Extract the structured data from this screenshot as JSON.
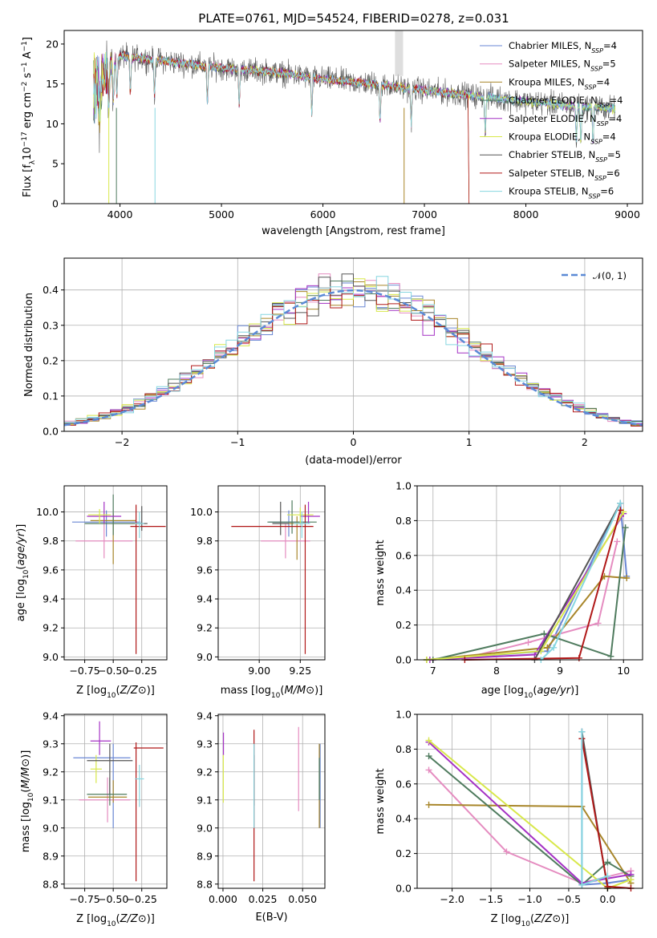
{
  "figure": {
    "title": "PLATE=0761, MJD=54524, FIBERID=0278, z=0.031"
  },
  "models": [
    {
      "name": "Chabrier MILES, N",
      "sub": "SSP",
      "tail": "=4",
      "color": "#6a87d4"
    },
    {
      "name": "Salpeter MILES, N",
      "sub": "SSP",
      "tail": "=5",
      "color": "#e58cc0"
    },
    {
      "name": "Kroupa MILES, N",
      "sub": "SSP",
      "tail": "=4",
      "color": "#a8862a"
    },
    {
      "name": "Chabrier ELODIE, N",
      "sub": "SSP",
      "tail": "=4",
      "color": "#4f7b5e"
    },
    {
      "name": "Salpeter ELODIE, N",
      "sub": "SSP",
      "tail": "=4",
      "color": "#a431c4"
    },
    {
      "name": "Kroupa ELODIE, N",
      "sub": "SSP",
      "tail": "=4",
      "color": "#d8e84a"
    },
    {
      "name": "Chabrier STELIB, N",
      "sub": "SSP",
      "tail": "=5",
      "color": "#555555"
    },
    {
      "name": "Salpeter STELIB, N",
      "sub": "SSP",
      "tail": "=6",
      "color": "#b01818"
    },
    {
      "name": "Kroupa STELIB, N",
      "sub": "SSP",
      "tail": "=6",
      "color": "#86d6e0"
    }
  ],
  "chart_data": [
    {
      "id": "spectrum",
      "type": "line",
      "xlabel": "wavelength [Angstrom, rest frame]",
      "ylabel_main": "Flux [f",
      "ylabel_sub": "λ",
      "ylabel_rest": "10",
      "ylabel_exp1": "−17",
      "ylabel_mid": " erg cm",
      "ylabel_exp2": "−2",
      "ylabel_mid2": " s",
      "ylabel_exp3": "−1",
      "ylabel_end": " A",
      "ylabel_exp4": "−1",
      "ylabel_close": "]",
      "xlim": [
        3450,
        9150
      ],
      "ylim": [
        0,
        21.7
      ],
      "xticks": [
        4000,
        5000,
        6000,
        7000,
        8000,
        9000
      ],
      "yticks": [
        0,
        5,
        10,
        15,
        20
      ],
      "data_range": [
        3740,
        8880
      ],
      "envelope": [
        [
          3740,
          14.5
        ],
        [
          4000,
          18.5
        ],
        [
          4500,
          17.8
        ],
        [
          5000,
          17.0
        ],
        [
          5500,
          16.5
        ],
        [
          6000,
          15.6
        ],
        [
          6500,
          15.0
        ],
        [
          7000,
          14.2
        ],
        [
          7500,
          13.5
        ],
        [
          8000,
          12.8
        ],
        [
          8500,
          12.2
        ],
        [
          8880,
          11.9
        ]
      ],
      "absorption_lines": [
        3800,
        3889,
        3934,
        3969,
        4102,
        4340,
        4861,
        5175,
        5890,
        6563,
        6870,
        7600,
        8498,
        8542,
        8662
      ],
      "legend_position": "upper-right"
    },
    {
      "id": "residuals",
      "type": "histogram",
      "xlabel": "(data-model)/error",
      "ylabel": "Normed distribution",
      "xlim": [
        -2.5,
        2.5
      ],
      "ylim": [
        0,
        0.49
      ],
      "xticks": [
        -2,
        -1,
        0,
        1,
        2
      ],
      "yticks": [
        0.0,
        0.1,
        0.2,
        0.3,
        0.4
      ],
      "bin_width": 0.1,
      "reference_label": "𝒩(0, 1)",
      "reference_color": "#5b8ad6",
      "grid": true,
      "legend_position": "upper-right"
    },
    {
      "id": "age_vs_Z",
      "type": "errorbar",
      "xlabel": "Z [log10(Z/Z⊙)]",
      "ylabel": "age  [log10(age/yr)]",
      "xlim": [
        -0.93,
        -0.03
      ],
      "ylim": [
        8.98,
        10.18
      ],
      "xticks": [
        -0.75,
        -0.5,
        -0.25
      ],
      "yticks": [
        9.0,
        9.2,
        9.4,
        9.6,
        9.8,
        10.0
      ],
      "points": [
        {
          "x": -0.56,
          "y": 9.93,
          "xerr": [
            0.3,
            0.3
          ],
          "yerr": [
            0.1,
            0.08
          ]
        },
        {
          "x": -0.58,
          "y": 9.8,
          "xerr": [
            0.25,
            0.25
          ],
          "yerr": [
            0.12,
            0.12
          ]
        },
        {
          "x": -0.5,
          "y": 9.94,
          "xerr": [
            0.2,
            0.2
          ],
          "yerr": [
            0.3,
            0.05
          ]
        },
        {
          "x": -0.5,
          "y": 9.92,
          "xerr": [
            0.25,
            0.25
          ],
          "yerr": [
            0.08,
            0.2
          ]
        },
        {
          "x": -0.58,
          "y": 9.97,
          "xerr": [
            0.15,
            0.15
          ],
          "yerr": [
            0.05,
            0.1
          ]
        },
        {
          "x": -0.62,
          "y": 9.98,
          "xerr": [
            0.1,
            0.1
          ],
          "yerr": [
            0.06,
            0.04
          ]
        },
        {
          "x": -0.25,
          "y": 9.92,
          "xerr": [
            0.05,
            0.05
          ],
          "yerr": [
            0.05,
            0.12
          ]
        },
        {
          "x": -0.3,
          "y": 9.9,
          "xerr": [
            0.05,
            0.26
          ],
          "yerr": [
            0.88,
            0.15
          ]
        },
        {
          "x": -0.27,
          "y": 9.92,
          "xerr": [
            0.04,
            0.04
          ],
          "yerr": [
            0.1,
            0.08
          ]
        }
      ]
    },
    {
      "id": "age_vs_mass",
      "type": "errorbar",
      "xlabel": "mass [log10(M/M⊙)]",
      "ylabel": "",
      "xlim": [
        8.75,
        9.4
      ],
      "ylim": [
        8.98,
        10.18
      ],
      "xticks": [
        9.0,
        9.25
      ],
      "yticks": [
        9.0,
        9.2,
        9.4,
        9.6,
        9.8,
        10.0
      ],
      "points": [
        {
          "x": 9.18,
          "y": 9.93,
          "xerr": [
            0.12,
            0.12
          ],
          "yerr": [
            0.1,
            0.08
          ]
        },
        {
          "x": 9.16,
          "y": 9.8,
          "xerr": [
            0.15,
            0.15
          ],
          "yerr": [
            0.12,
            0.12
          ]
        },
        {
          "x": 9.23,
          "y": 9.92,
          "xerr": [
            0.05,
            0.05
          ],
          "yerr": [
            0.25,
            0.05
          ]
        },
        {
          "x": 9.2,
          "y": 9.93,
          "xerr": [
            0.15,
            0.15
          ],
          "yerr": [
            0.08,
            0.15
          ]
        },
        {
          "x": 9.3,
          "y": 9.97,
          "xerr": [
            0.05,
            0.07
          ],
          "yerr": [
            0.05,
            0.1
          ]
        },
        {
          "x": 9.25,
          "y": 9.98,
          "xerr": [
            0.08,
            0.08
          ],
          "yerr": [
            0.06,
            0.05
          ]
        },
        {
          "x": 9.13,
          "y": 9.92,
          "xerr": [
            0.05,
            0.05
          ],
          "yerr": [
            0.08,
            0.15
          ]
        },
        {
          "x": 9.28,
          "y": 9.9,
          "xerr": [
            0.45,
            0.05
          ],
          "yerr": [
            0.88,
            0.15
          ]
        },
        {
          "x": 9.26,
          "y": 9.92,
          "xerr": [
            0.05,
            0.05
          ],
          "yerr": [
            0.1,
            0.08
          ]
        }
      ]
    },
    {
      "id": "mass_weight_vs_age",
      "type": "line",
      "xlabel": "age  [log10(age/yr)]",
      "ylabel": "mass weight",
      "xlim": [
        6.75,
        10.3
      ],
      "ylim": [
        0,
        1.0
      ],
      "xticks": [
        7,
        8,
        9,
        10
      ],
      "yticks": [
        0.0,
        0.2,
        0.4,
        0.6,
        0.8,
        1.0
      ],
      "grid": true,
      "series": [
        {
          "x": [
            6.9,
            8.8,
            9.95,
            10.05
          ],
          "y": [
            0.0,
            0.05,
            0.9,
            0.48
          ]
        },
        {
          "x": [
            7.5,
            8.5,
            9.6,
            9.9
          ],
          "y": [
            0.01,
            0.1,
            0.21,
            0.68
          ]
        },
        {
          "x": [
            6.9,
            8.8,
            9.7,
            10.05
          ],
          "y": [
            0.0,
            0.07,
            0.48,
            0.47
          ]
        },
        {
          "x": [
            7.0,
            8.75,
            9.8,
            10.03
          ],
          "y": [
            0.0,
            0.15,
            0.02,
            0.76
          ]
        },
        {
          "x": [
            6.95,
            8.6,
            10.0
          ],
          "y": [
            0.0,
            0.03,
            0.84
          ]
        },
        {
          "x": [
            6.9,
            8.7,
            10.0
          ],
          "y": [
            0.0,
            0.05,
            0.85
          ]
        },
        {
          "x": [
            8.6,
            9.95
          ],
          "y": [
            0.0,
            0.9
          ]
        },
        {
          "x": [
            7.5,
            9.3,
            9.95
          ],
          "y": [
            0.0,
            0.01,
            0.86
          ]
        },
        {
          "x": [
            8.7,
            8.9,
            9.95
          ],
          "y": [
            0.0,
            0.07,
            0.9
          ]
        }
      ]
    },
    {
      "id": "mass_vs_Z",
      "type": "errorbar",
      "xlabel": "Z [log10(Z/Z⊙)]",
      "ylabel": "mass [log10(M/M⊙)]",
      "xlim": [
        -0.93,
        -0.03
      ],
      "ylim": [
        8.785,
        9.405
      ],
      "xticks": [
        -0.75,
        -0.5,
        -0.25
      ],
      "yticks": [
        8.8,
        8.9,
        9.0,
        9.1,
        9.2,
        9.3,
        9.4
      ],
      "points": [
        {
          "x": -0.5,
          "y": 9.25,
          "xerr": [
            0.35,
            0.15
          ],
          "yerr": [
            0.25,
            0.05
          ]
        },
        {
          "x": -0.55,
          "y": 9.1,
          "xerr": [
            0.25,
            0.2
          ],
          "yerr": [
            0.08,
            0.08
          ]
        },
        {
          "x": -0.5,
          "y": 9.11,
          "xerr": [
            0.22,
            0.12
          ],
          "yerr": [
            0.02,
            0.06
          ]
        },
        {
          "x": -0.53,
          "y": 9.12,
          "xerr": [
            0.2,
            0.15
          ],
          "yerr": [
            0.04,
            0.06
          ]
        },
        {
          "x": -0.62,
          "y": 9.31,
          "xerr": [
            0.08,
            0.1
          ],
          "yerr": [
            0.05,
            0.07
          ]
        },
        {
          "x": -0.65,
          "y": 9.21,
          "xerr": [
            0.05,
            0.05
          ],
          "yerr": [
            0.05,
            0.05
          ]
        },
        {
          "x": -0.53,
          "y": 9.24,
          "xerr": [
            0.2,
            0.2
          ],
          "yerr": [
            0.12,
            0.06
          ]
        },
        {
          "x": -0.3,
          "y": 9.285,
          "xerr": [
            0.02,
            0.24
          ],
          "yerr": [
            0.475,
            0.02
          ]
        },
        {
          "x": -0.27,
          "y": 9.175,
          "xerr": [
            0.04,
            0.04
          ],
          "yerr": [
            0.1,
            0.05
          ]
        }
      ]
    },
    {
      "id": "mass_vs_ebv",
      "type": "errorbar",
      "xlabel": "E(B-V)",
      "ylabel": "",
      "xlim": [
        -0.003,
        0.064
      ],
      "ylim": [
        8.785,
        9.405
      ],
      "xticks": [
        0.0,
        0.025,
        0.05
      ],
      "xticklabels": [
        "0.000",
        "0.025",
        "0.050"
      ],
      "yticks": [
        8.8,
        8.9,
        9.0,
        9.1,
        9.2,
        9.3,
        9.4
      ],
      "points": [
        {
          "x": 0.061,
          "y": 9.18,
          "xerr": [
            0,
            0
          ],
          "yerr": [
            0.18,
            0.12
          ]
        },
        {
          "x": 0.0475,
          "y": 9.2,
          "xerr": [
            0,
            0
          ],
          "yerr": [
            0.14,
            0.16
          ]
        },
        {
          "x": 0.0605,
          "y": 9.1,
          "xerr": [
            0,
            0
          ],
          "yerr": [
            0.1,
            0.2
          ]
        },
        {
          "x": 0.0605,
          "y": 9.15,
          "xerr": [
            0,
            0
          ],
          "yerr": [
            0.05,
            0.1
          ]
        },
        {
          "x": 0.0003,
          "y": 9.3,
          "xerr": [
            0,
            0
          ],
          "yerr": [
            0.04,
            0.04
          ]
        },
        {
          "x": 0.0002,
          "y": 9.17,
          "xerr": [
            0,
            0
          ],
          "yerr": [
            0.08,
            0.09
          ]
        },
        {
          "x": 0.0195,
          "y": 9.2,
          "xerr": [
            0,
            0
          ],
          "yerr": [
            0.12,
            0.06
          ]
        },
        {
          "x": 0.0195,
          "y": 9.08,
          "xerr": [
            0,
            0
          ],
          "yerr": [
            0.27,
            0.27
          ]
        },
        {
          "x": 0.0195,
          "y": 9.15,
          "xerr": [
            0,
            0
          ],
          "yerr": [
            0.15,
            0.15
          ]
        }
      ]
    },
    {
      "id": "mass_weight_vs_Z",
      "type": "line",
      "xlabel": "Z [log10(Z/Z⊙)]",
      "ylabel": "mass weight",
      "xlim": [
        -2.45,
        0.45
      ],
      "ylim": [
        0,
        1.0
      ],
      "xticks": [
        -2.0,
        -1.5,
        -1.0,
        -0.5,
        0.0
      ],
      "yticks": [
        0.0,
        0.2,
        0.4,
        0.6,
        0.8,
        1.0
      ],
      "grid": true,
      "series": [
        {
          "x": [
            -0.33,
            -0.33,
            0.0,
            0.3
          ],
          "y": [
            0.9,
            0.02,
            0.03,
            0.05
          ]
        },
        {
          "x": [
            -2.3,
            -1.3,
            -0.33,
            0.3
          ],
          "y": [
            0.68,
            0.21,
            0.03,
            0.1
          ]
        },
        {
          "x": [
            -2.3,
            -0.33,
            0.3
          ],
          "y": [
            0.48,
            0.47,
            0.03
          ]
        },
        {
          "x": [
            -2.3,
            -0.33,
            0.0,
            0.3
          ],
          "y": [
            0.76,
            0.02,
            0.15,
            0.07
          ]
        },
        {
          "x": [
            -2.3,
            -0.33,
            0.3
          ],
          "y": [
            0.84,
            0.03,
            0.08
          ]
        },
        {
          "x": [
            -2.3,
            0.0,
            0.3
          ],
          "y": [
            0.85,
            0.0,
            0.05
          ]
        },
        {
          "x": [
            -0.33,
            0.0
          ],
          "y": [
            0.9,
            0.0
          ]
        },
        {
          "x": [
            -0.33,
            0.0,
            0.3
          ],
          "y": [
            0.86,
            0.01,
            0.0
          ]
        },
        {
          "x": [
            -0.33,
            -0.33,
            0.0
          ],
          "y": [
            0.9,
            0.02,
            0.07
          ]
        }
      ]
    }
  ]
}
